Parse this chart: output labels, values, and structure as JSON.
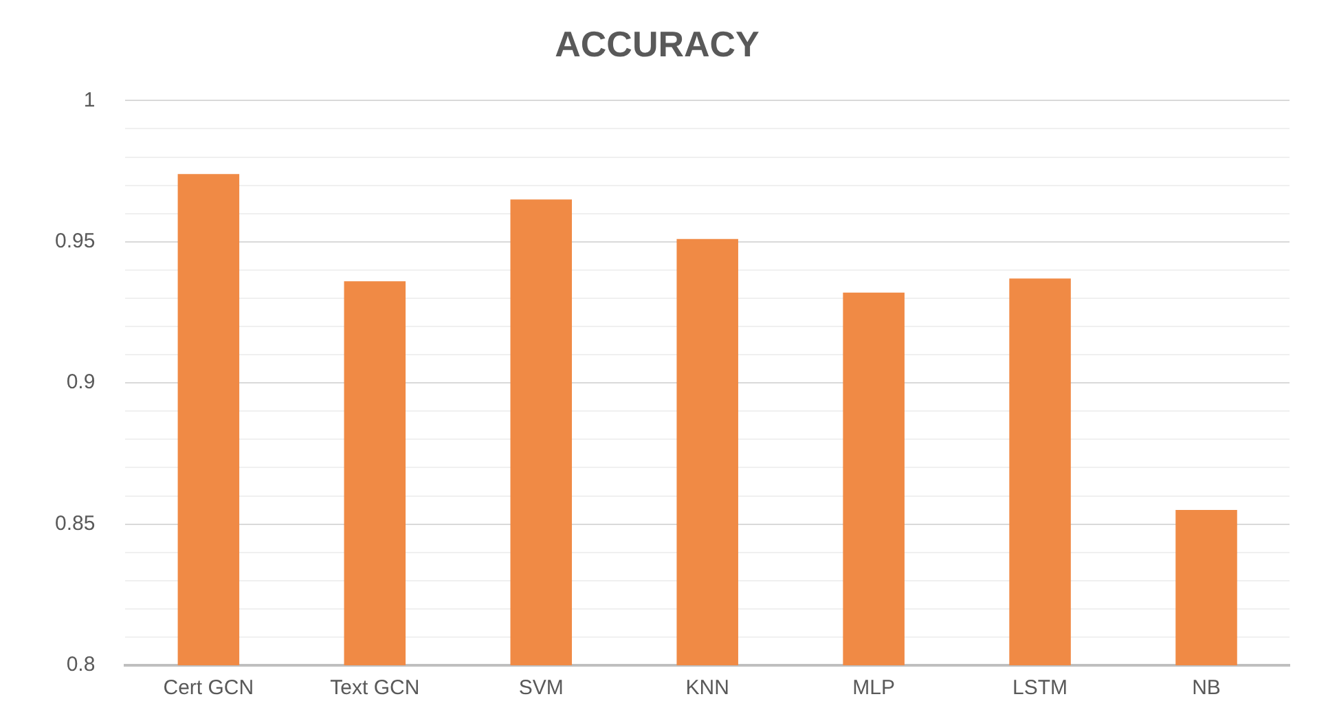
{
  "chart_data": {
    "type": "bar",
    "title": "ACCURACY",
    "categories": [
      "Cert GCN",
      "Text GCN",
      "SVM",
      "KNN",
      "MLP",
      "LSTM",
      "NB"
    ],
    "values": [
      0.974,
      0.936,
      0.965,
      0.951,
      0.932,
      0.937,
      0.855
    ],
    "color": "#f08a45",
    "ylim": [
      0.8,
      1
    ],
    "yticks": [
      0.8,
      {
        "value": 0.81,
        "label": null
      },
      {
        "value": 0.82,
        "label": null
      },
      {
        "value": 0.83,
        "label": null
      },
      {
        "value": 0.84,
        "label": null
      },
      0.85,
      {
        "value": 0.86,
        "label": null
      },
      {
        "value": 0.87,
        "label": null
      },
      {
        "value": 0.88,
        "label": null
      },
      {
        "value": 0.89,
        "label": null
      },
      0.9,
      {
        "value": 0.91,
        "label": null
      },
      {
        "value": 0.92,
        "label": null
      },
      {
        "value": 0.93,
        "label": null
      },
      {
        "value": 0.94,
        "label": null
      },
      0.95,
      {
        "value": 0.96,
        "label": null
      },
      {
        "value": 0.97,
        "label": null
      },
      {
        "value": 0.98,
        "label": null
      },
      {
        "value": 0.99,
        "label": null
      },
      1
    ],
    "grid": "y",
    "legend": false
  }
}
